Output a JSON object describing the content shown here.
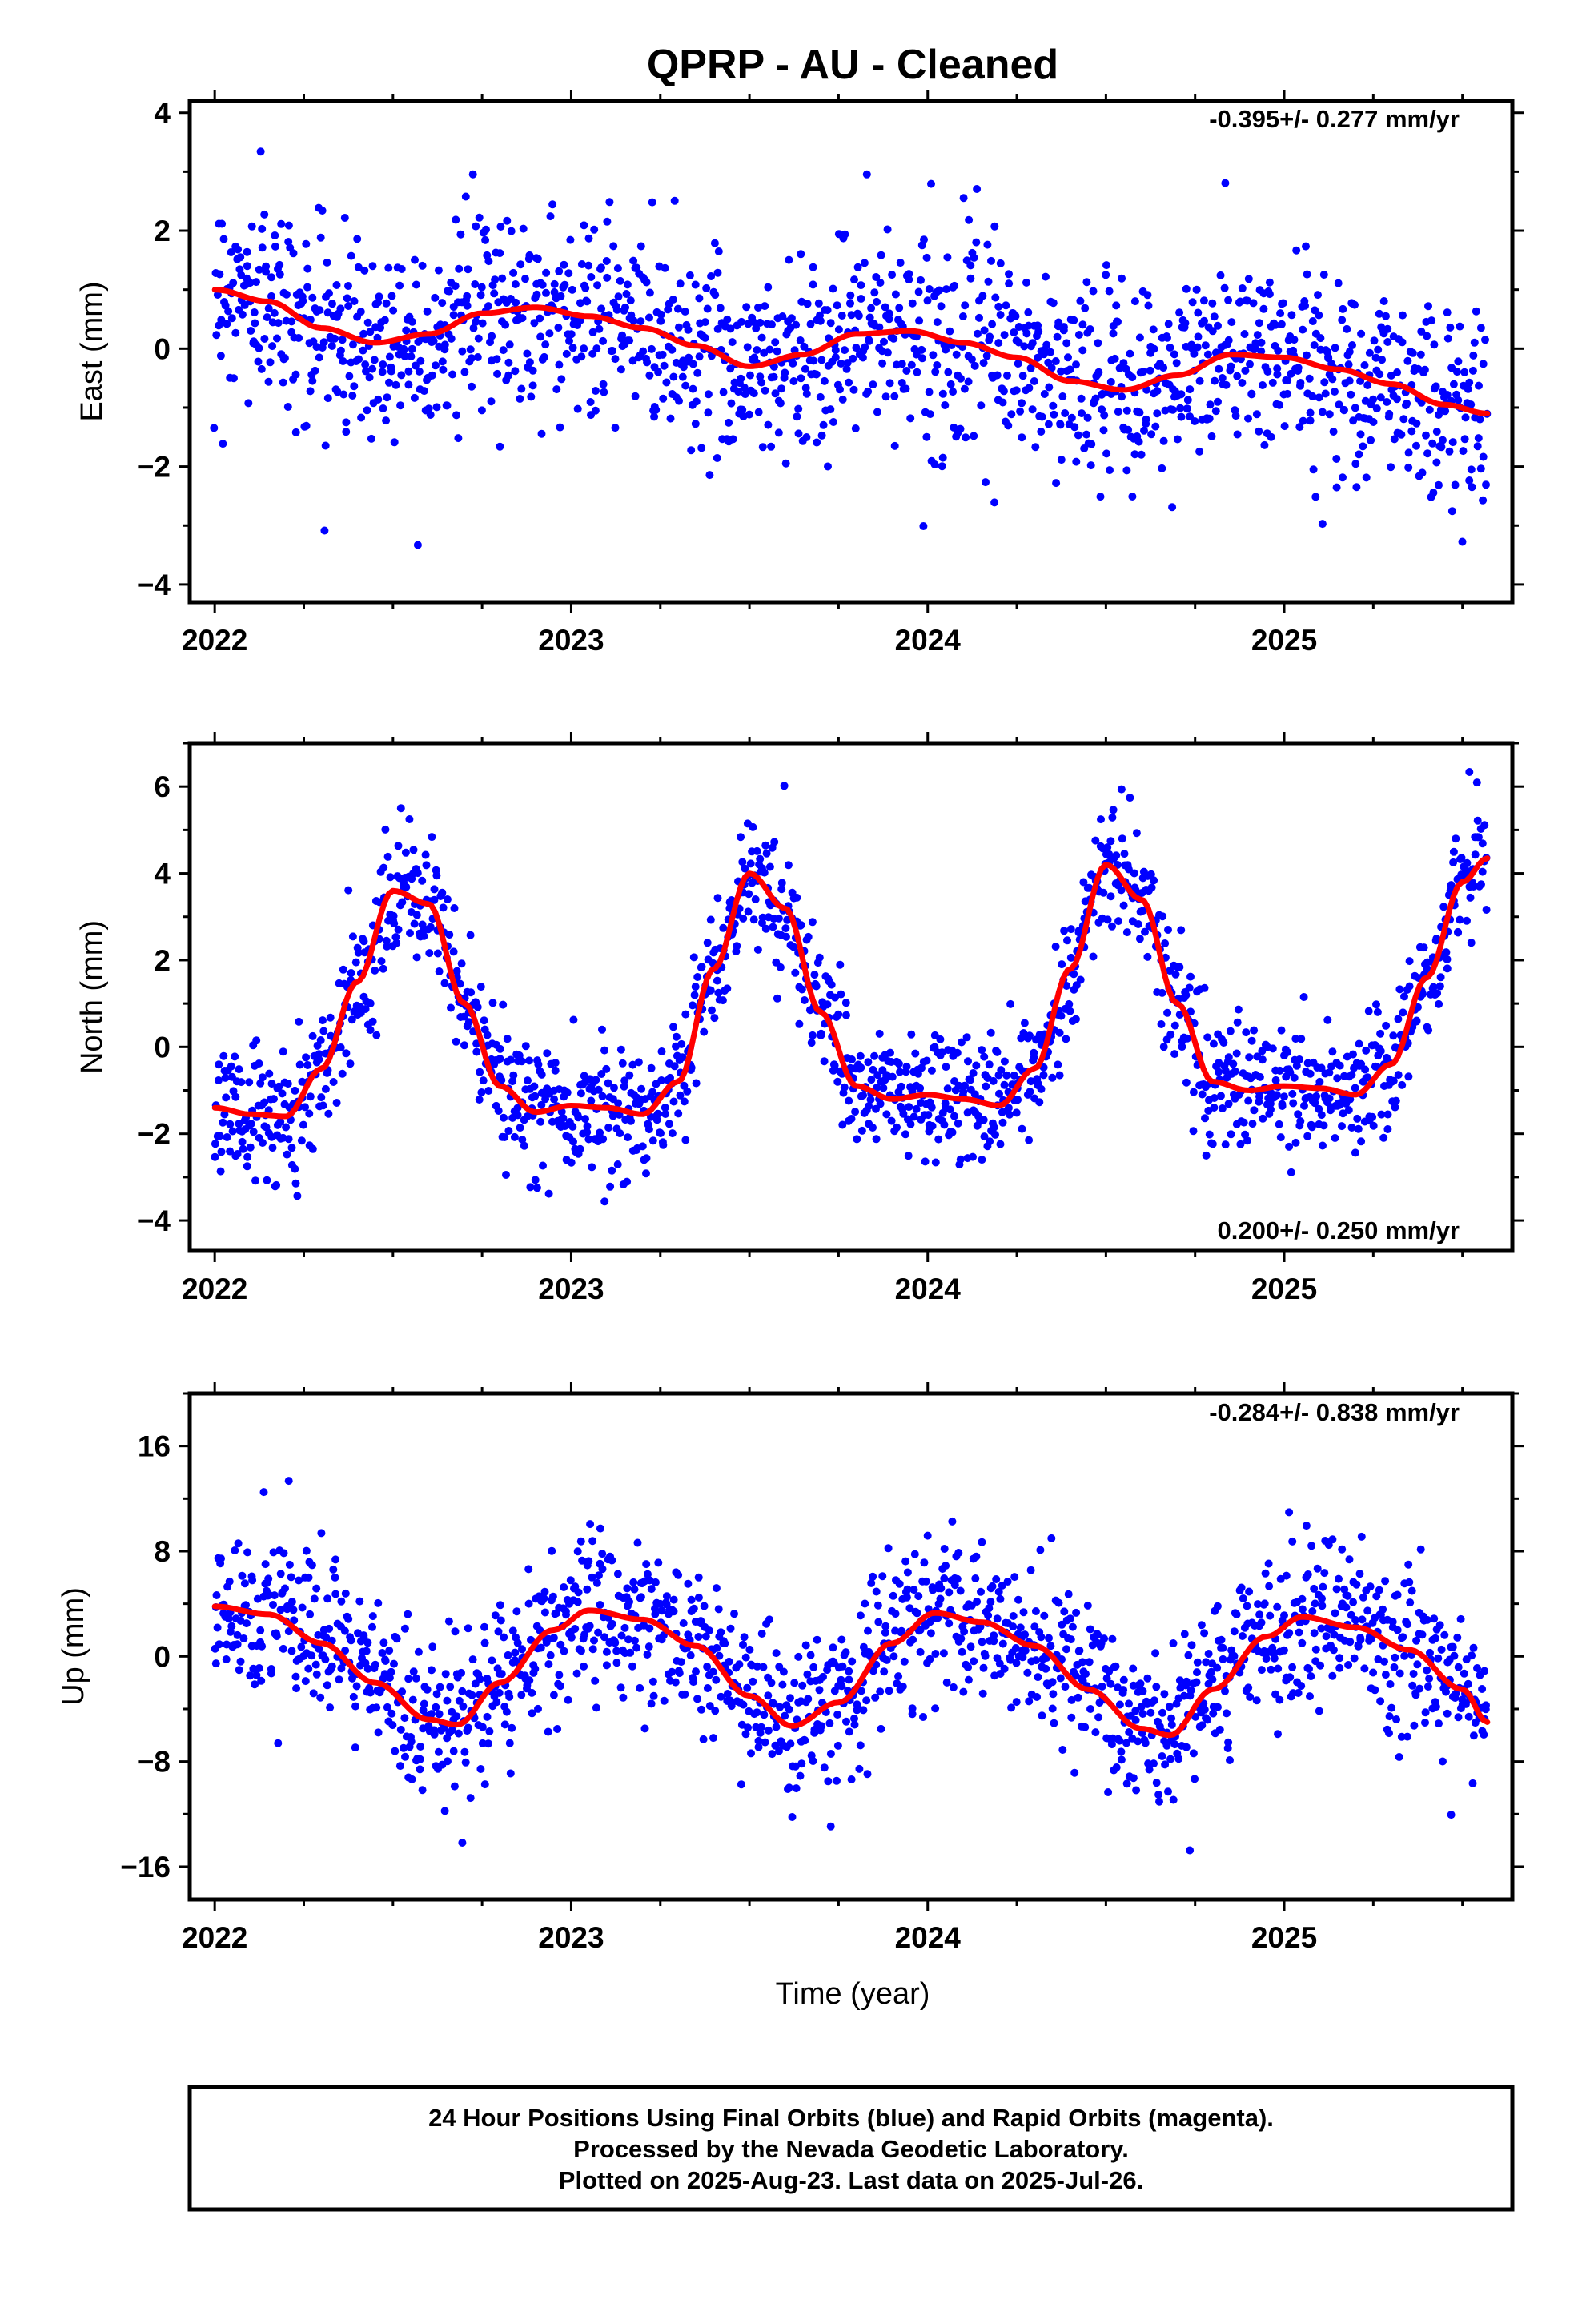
{
  "title": "QPRP  - AU - Cleaned",
  "footer": {
    "line1": "24 Hour Positions Using Final Orbits (blue) and Rapid Orbits (magenta).",
    "line2": "Processed by the Nevada Geodetic Laboratory.",
    "line3": "Plotted on 2025-Aug-23. Last data on 2025-Jul-26."
  },
  "xlabel": "Time (year)",
  "colors": {
    "points": "#0000ff",
    "fit": "#ff0000",
    "frame": "#000000"
  },
  "chart_data": [
    {
      "type": "scatter",
      "ylabel": "East (mm)",
      "rate_text": "-0.395+/- 0.277 mm/yr",
      "rate_position": "top-right",
      "xlim": [
        2021.93,
        2025.64
      ],
      "ylim": [
        -4.3,
        4.2
      ],
      "x_ticks": [
        2022,
        2023,
        2024,
        2025
      ],
      "y_ticks": [
        -4,
        -2,
        0,
        2,
        4
      ],
      "y_tick_labels": [
        "−4",
        "−2",
        "0",
        "2",
        "4"
      ],
      "series": [
        {
          "kind": "points",
          "data_range": [
            2022.0,
            2025.57
          ],
          "point_density_per_year": 420,
          "scatter_std": 0.85
        },
        {
          "kind": "fit",
          "x": [
            2022.0,
            2022.15,
            2022.3,
            2022.45,
            2022.6,
            2022.75,
            2022.9,
            2023.05,
            2023.2,
            2023.35,
            2023.5,
            2023.65,
            2023.8,
            2023.95,
            2024.1,
            2024.25,
            2024.4,
            2024.55,
            2024.7,
            2024.85,
            2025.0,
            2025.15,
            2025.3,
            2025.45,
            2025.57
          ],
          "y": [
            1.0,
            0.8,
            0.35,
            0.1,
            0.25,
            0.6,
            0.7,
            0.55,
            0.35,
            0.05,
            -0.3,
            -0.1,
            0.25,
            0.3,
            0.1,
            -0.15,
            -0.55,
            -0.7,
            -0.45,
            -0.1,
            -0.15,
            -0.35,
            -0.6,
            -0.95,
            -1.1
          ]
        }
      ]
    },
    {
      "type": "scatter",
      "ylabel": "North (mm)",
      "rate_text": "0.200+/- 0.250 mm/yr",
      "rate_position": "bottom-right",
      "xlim": [
        2021.93,
        2025.64
      ],
      "ylim": [
        -4.7,
        7.0
      ],
      "x_ticks": [
        2022,
        2023,
        2024,
        2025
      ],
      "y_ticks": [
        -4,
        -2,
        0,
        2,
        4,
        6
      ],
      "y_tick_labels": [
        "−4",
        "−2",
        "0",
        "2",
        "4",
        "6"
      ],
      "series": [
        {
          "kind": "points",
          "data_range": [
            2022.0,
            2025.57
          ],
          "point_density_per_year": 420,
          "scatter_std": 0.75
        },
        {
          "kind": "fit",
          "x": [
            2022.0,
            2022.1,
            2022.2,
            2022.3,
            2022.4,
            2022.5,
            2022.6,
            2022.7,
            2022.8,
            2022.9,
            2023.0,
            2023.1,
            2023.2,
            2023.3,
            2023.4,
            2023.5,
            2023.6,
            2023.7,
            2023.8,
            2023.9,
            2024.0,
            2024.1,
            2024.2,
            2024.3,
            2024.4,
            2024.5,
            2024.6,
            2024.7,
            2024.8,
            2024.9,
            2025.0,
            2025.1,
            2025.2,
            2025.3,
            2025.4,
            2025.5,
            2025.57
          ],
          "y": [
            -1.4,
            -1.55,
            -1.6,
            -0.5,
            1.5,
            3.6,
            3.3,
            1.0,
            -0.9,
            -1.5,
            -1.35,
            -1.4,
            -1.55,
            -0.8,
            1.8,
            4.0,
            3.2,
            0.8,
            -0.9,
            -1.2,
            -1.1,
            -1.2,
            -1.35,
            -0.5,
            1.8,
            4.2,
            3.4,
            1.0,
            -0.8,
            -1.0,
            -0.9,
            -0.95,
            -1.1,
            -0.4,
            1.6,
            3.8,
            4.35
          ]
        }
      ]
    },
    {
      "type": "scatter",
      "ylabel": "Up (mm)",
      "rate_text": "-0.284+/- 0.838 mm/yr",
      "rate_position": "top-right",
      "xlim": [
        2021.93,
        2025.64
      ],
      "ylim": [
        -18.5,
        20.0
      ],
      "x_ticks": [
        2022,
        2023,
        2024,
        2025
      ],
      "y_ticks": [
        -16,
        -8,
        0,
        8,
        16
      ],
      "y_tick_labels": [
        "−16",
        "−8",
        "0",
        "8",
        "16"
      ],
      "series": [
        {
          "kind": "points",
          "data_range": [
            2022.0,
            2025.57
          ],
          "point_density_per_year": 420,
          "scatter_std": 3.0
        },
        {
          "kind": "fit",
          "x": [
            2022.0,
            2022.15,
            2022.3,
            2022.45,
            2022.6,
            2022.68,
            2022.8,
            2022.95,
            2023.05,
            2023.2,
            2023.35,
            2023.5,
            2023.62,
            2023.75,
            2023.9,
            2024.02,
            2024.15,
            2024.3,
            2024.45,
            2024.6,
            2024.68,
            2024.8,
            2024.95,
            2025.05,
            2025.2,
            2025.35,
            2025.5,
            2025.57
          ],
          "y": [
            3.8,
            3.2,
            1.0,
            -2.0,
            -4.8,
            -5.2,
            -2.0,
            2.0,
            3.5,
            2.8,
            0.8,
            -3.0,
            -5.3,
            -3.5,
            1.0,
            3.3,
            2.6,
            0.8,
            -2.5,
            -5.5,
            -6.0,
            -2.5,
            1.5,
            3.0,
            2.2,
            0.5,
            -2.5,
            -5.0
          ]
        }
      ]
    }
  ]
}
